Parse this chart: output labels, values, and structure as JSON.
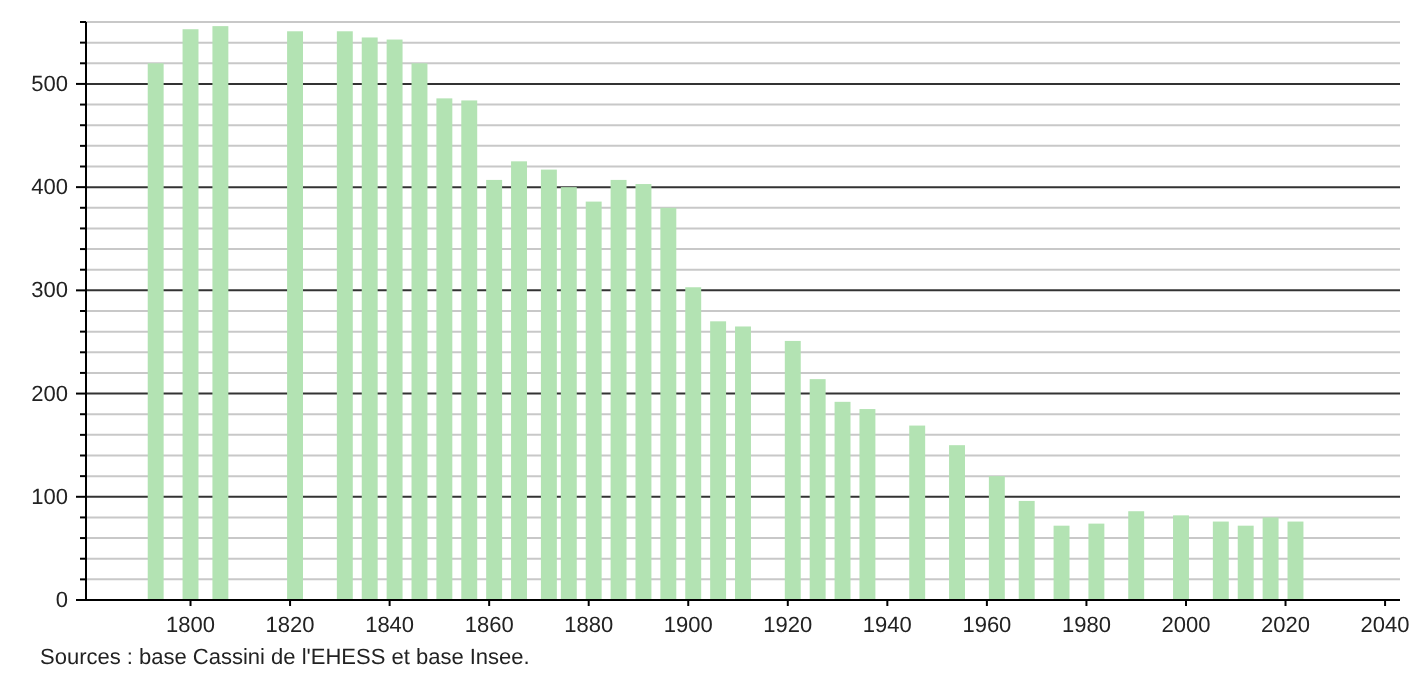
{
  "chart_data": {
    "type": "bar",
    "color": "#b3e3b3",
    "x": [
      1793,
      1800,
      1806,
      1821,
      1831,
      1836,
      1841,
      1846,
      1851,
      1856,
      1861,
      1866,
      1872,
      1876,
      1881,
      1886,
      1891,
      1896,
      1901,
      1906,
      1911,
      1921,
      1926,
      1931,
      1936,
      1946,
      1954,
      1962,
      1968,
      1975,
      1982,
      1990,
      1999,
      2007,
      2012,
      2017,
      2022
    ],
    "values": [
      520,
      553,
      556,
      551,
      551,
      545,
      543,
      520,
      486,
      484,
      407,
      425,
      417,
      400,
      386,
      407,
      403,
      380,
      303,
      270,
      265,
      251,
      214,
      192,
      185,
      169,
      150,
      120,
      96,
      72,
      74,
      86,
      82,
      76,
      72,
      80,
      76
    ],
    "xlim": [
      1779,
      2043
    ],
    "ylim": [
      0,
      560
    ],
    "xticks": [
      1800,
      1820,
      1840,
      1860,
      1880,
      1900,
      1920,
      1940,
      1960,
      1980,
      2000,
      2020,
      2040
    ],
    "yticks": [
      0,
      {
        "value": 20,
        "label": null
      },
      {
        "value": 40,
        "label": null
      },
      {
        "value": 60,
        "label": null
      },
      {
        "value": 80,
        "label": null
      },
      100,
      {
        "value": 120,
        "label": null
      },
      {
        "value": 140,
        "label": null
      },
      {
        "value": 160,
        "label": null
      },
      {
        "value": 180,
        "label": null
      },
      200,
      {
        "value": 220,
        "label": null
      },
      {
        "value": 240,
        "label": null
      },
      {
        "value": 260,
        "label": null
      },
      {
        "value": 280,
        "label": null
      },
      300,
      {
        "value": 320,
        "label": null
      },
      {
        "value": 340,
        "label": null
      },
      {
        "value": 360,
        "label": null
      },
      {
        "value": 380,
        "label": null
      },
      400,
      {
        "value": 420,
        "label": null
      },
      {
        "value": 440,
        "label": null
      },
      {
        "value": 460,
        "label": null
      },
      {
        "value": 480,
        "label": null
      },
      500,
      {
        "value": 520,
        "label": null
      },
      {
        "value": 540,
        "label": null
      },
      {
        "value": 560,
        "label": null
      }
    ],
    "grid": "y",
    "annotations": [
      "Sources : base Cassini de l'EHESS et base Insee."
    ]
  }
}
